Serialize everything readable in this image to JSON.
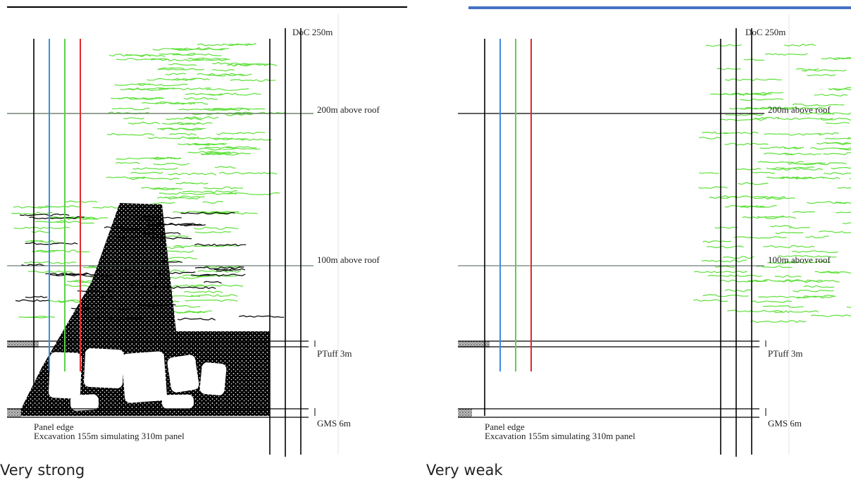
{
  "panels": [
    {
      "caption": "Very strong",
      "doc": "DoC 250m",
      "level_200": "200m above roof",
      "level_100": "100m above roof",
      "ptuff": "PTuff 3m",
      "gms": "GMS 6m",
      "edge": "Panel edge",
      "excavation": "Excavation 155m simulating 310m panel"
    },
    {
      "caption": "Very weak",
      "doc": "DoC 250m",
      "level_200": "200m above roof",
      "level_100": "100m above roof",
      "ptuff": "PTuff 3m",
      "gms": "GMS 6m",
      "edge": "Panel edge",
      "excavation": "Excavation 155m simulating 310m panel"
    }
  ]
}
